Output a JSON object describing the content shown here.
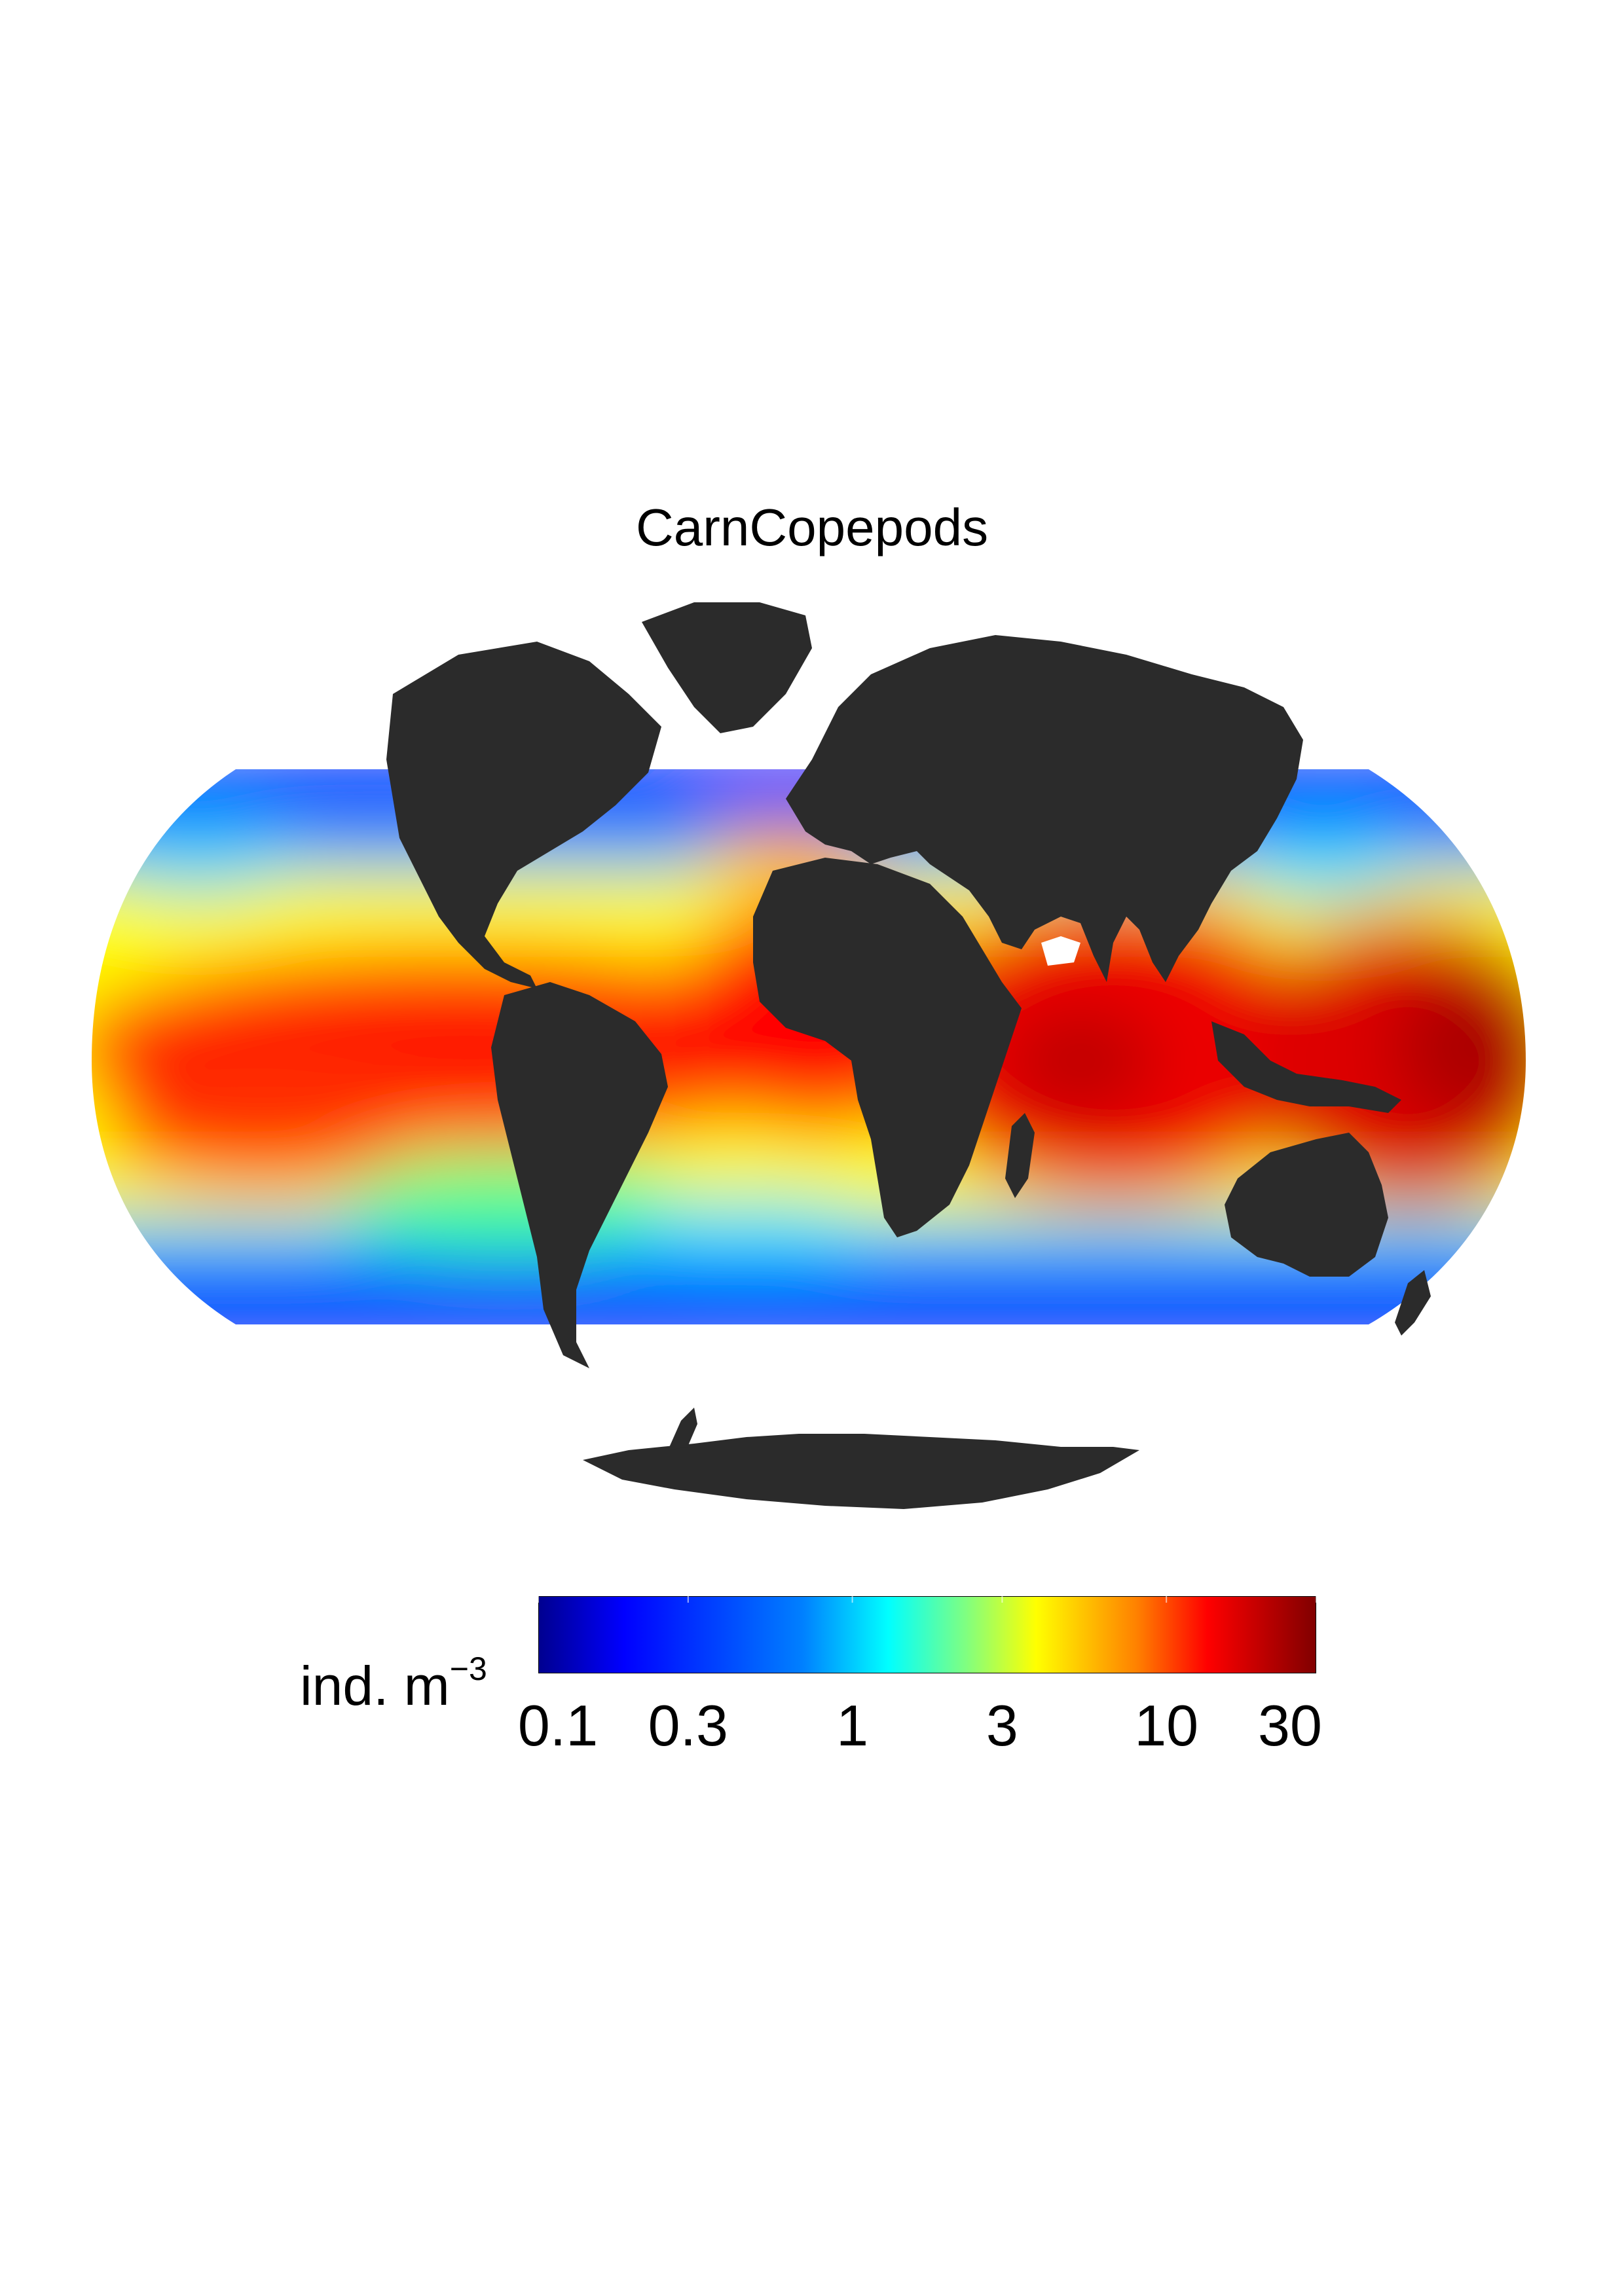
{
  "title": "CarnCopepods",
  "colorbar": {
    "units_text": "ind. m",
    "units_sup": "−3",
    "scale": "log",
    "range": [
      0.1,
      30
    ],
    "tick_labels": [
      "0.1",
      "0.3",
      "1",
      "3",
      "10",
      "30"
    ],
    "tick_values": [
      0.1,
      0.3,
      1,
      3,
      10,
      30
    ],
    "colormap": "jet",
    "colors": [
      "#00008f",
      "#0000ff",
      "#0080ff",
      "#00ffff",
      "#80ff80",
      "#ffff00",
      "#ff8000",
      "#ff0000",
      "#800000"
    ]
  },
  "map": {
    "projection": "Robinson",
    "land_color": "#2b2b2b",
    "no_data_color": "#ffffff"
  },
  "chart_data": {
    "type": "heatmap",
    "title": "CarnCopepods",
    "variable": "CarnCopepods",
    "units": "ind. m−3",
    "scale": "log",
    "range": [
      0.1,
      30
    ]
  }
}
